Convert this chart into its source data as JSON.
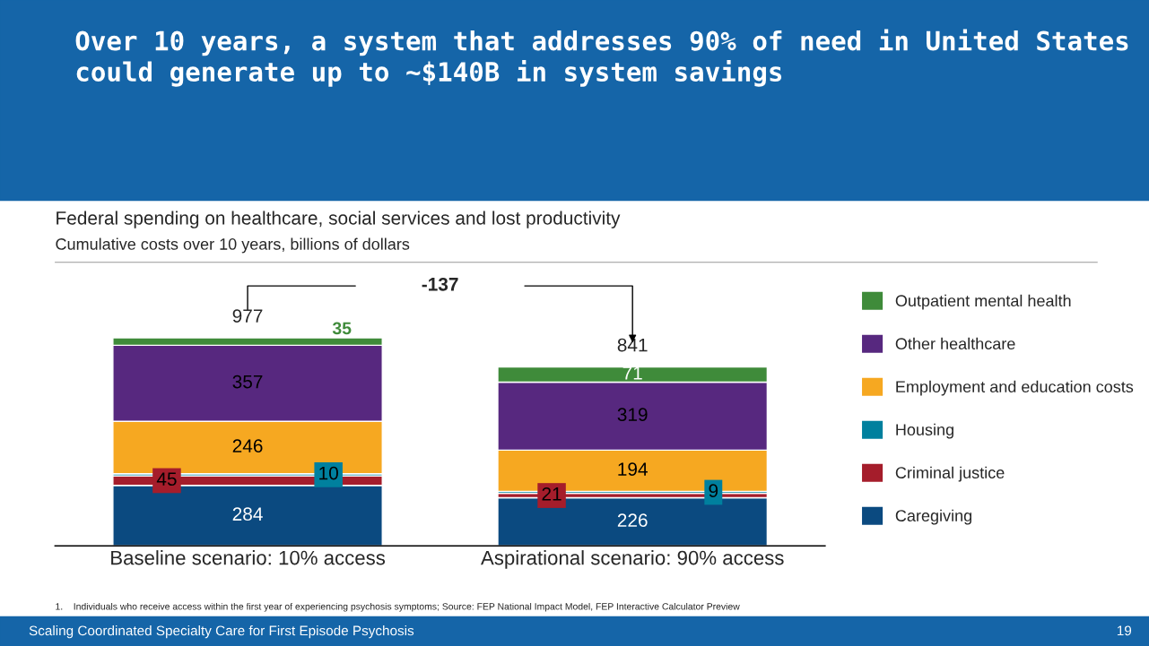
{
  "chart_data": {
    "type": "bar",
    "stacked": true,
    "title": "Over 10 years, a system that addresses 90% of need in United States could generate up to ~$140B in system savings",
    "subtitle": "Federal spending on healthcare, social services and lost productivity",
    "categories": [
      "Baseline scenario: 10% access",
      "Aspirational scenario: 90% access"
    ],
    "series": [
      {
        "name": "Caregiving",
        "color": "#0b4a80",
        "values": [
          284,
          226
        ]
      },
      {
        "name": "Criminal justice",
        "color": "#a51d2b",
        "values": [
          45,
          21
        ]
      },
      {
        "name": "Housing",
        "color": "#00809e",
        "values": [
          10,
          9
        ]
      },
      {
        "name": "Employment and education costs",
        "color": "#f6a821",
        "values": [
          246,
          194
        ]
      },
      {
        "name": "Other healthcare",
        "color": "#57287f",
        "values": [
          357,
          319
        ]
      },
      {
        "name": "Outpatient mental health",
        "color": "#3f8b3a",
        "values": [
          35,
          71
        ]
      }
    ],
    "data_labels": true,
    "totals": [
      "977",
      "841"
    ],
    "legend": "right",
    "annotations": [
      "-137",
      "Cumulative costs over 10 years, billions of dollars",
      "1.    Individuals who receive access within the first year of experiencing psychosis symptoms; Source: FEP National Impact Model, FEP Interactive Calculator Preview",
      "Scaling Coordinated Specialty Care for First Episode Psychosis",
      "19"
    ]
  }
}
